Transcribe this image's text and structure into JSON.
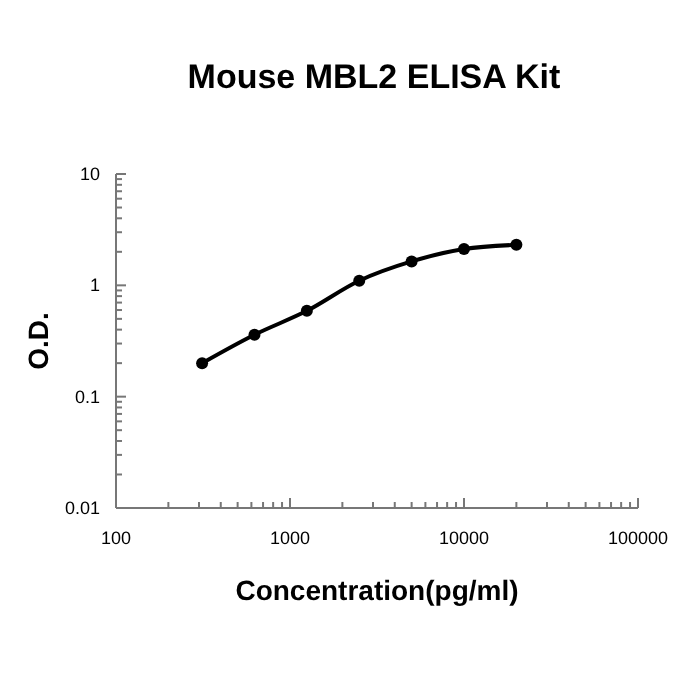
{
  "chart_data": {
    "type": "line",
    "title": "Mouse MBL2 ELISA Kit",
    "xlabel": "Concentration(pg/ml)",
    "ylabel": "O.D.",
    "log": "xy",
    "marker": "circle",
    "line_style": "solid",
    "grid": false,
    "x": [
      312.5,
      625,
      1250,
      2500,
      5000,
      10000,
      20000
    ],
    "series": [
      {
        "color": "#000000",
        "values": [
          0.2,
          0.36,
          0.59,
          1.1,
          1.64,
          2.12,
          2.31
        ]
      }
    ],
    "xlim": [
      100,
      100000
    ],
    "xticks": [
      100,
      {
        "value": 200,
        "label": null
      },
      {
        "value": 300,
        "label": null
      },
      {
        "value": 400,
        "label": null
      },
      {
        "value": 500,
        "label": null
      },
      {
        "value": 600,
        "label": null
      },
      {
        "value": 700,
        "label": null
      },
      {
        "value": 800,
        "label": null
      },
      {
        "value": 900,
        "label": null
      },
      1000,
      {
        "value": 2000,
        "label": null
      },
      {
        "value": 3000,
        "label": null
      },
      {
        "value": 4000,
        "label": null
      },
      {
        "value": 5000,
        "label": null
      },
      {
        "value": 6000,
        "label": null
      },
      {
        "value": 7000,
        "label": null
      },
      {
        "value": 8000,
        "label": null
      },
      {
        "value": 9000,
        "label": null
      },
      10000,
      {
        "value": 20000,
        "label": null
      },
      {
        "value": 30000,
        "label": null
      },
      {
        "value": 40000,
        "label": null
      },
      {
        "value": 50000,
        "label": null
      },
      {
        "value": 60000,
        "label": null
      },
      {
        "value": 70000,
        "label": null
      },
      {
        "value": 80000,
        "label": null
      },
      {
        "value": 90000,
        "label": null
      },
      100000
    ],
    "ylim": [
      0.01,
      10
    ],
    "yticks": [
      0.01,
      {
        "value": 0.02,
        "label": null
      },
      {
        "value": 0.03,
        "label": null
      },
      {
        "value": 0.04,
        "label": null
      },
      {
        "value": 0.05,
        "label": null
      },
      {
        "value": 0.06,
        "label": null
      },
      {
        "value": 0.07,
        "label": null
      },
      {
        "value": 0.08,
        "label": null
      },
      {
        "value": 0.09,
        "label": null
      },
      0.1,
      {
        "value": 0.2,
        "label": null
      },
      {
        "value": 0.3,
        "label": null
      },
      {
        "value": 0.4,
        "label": null
      },
      {
        "value": 0.5,
        "label": null
      },
      {
        "value": 0.6,
        "label": null
      },
      {
        "value": 0.7,
        "label": null
      },
      {
        "value": 0.8,
        "label": null
      },
      {
        "value": 0.9,
        "label": null
      },
      1,
      {
        "value": 2,
        "label": null
      },
      {
        "value": 3,
        "label": null
      },
      {
        "value": 4,
        "label": null
      },
      {
        "value": 5,
        "label": null
      },
      {
        "value": 6,
        "label": null
      },
      {
        "value": 7,
        "label": null
      },
      {
        "value": 8,
        "label": null
      },
      {
        "value": 9,
        "label": null
      },
      10
    ]
  }
}
